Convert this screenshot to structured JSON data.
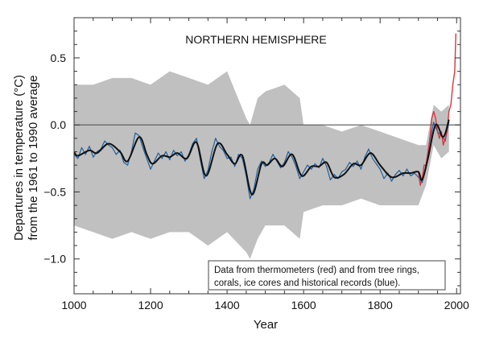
{
  "chart_data": {
    "type": "line",
    "title": "NORTHERN HEMISPHERE",
    "xlabel": "Year",
    "ylabel": [
      "Departures in temperature (°C)",
      "from the 1961 to 1990 average"
    ],
    "xlim": [
      1000,
      2010
    ],
    "ylim": [
      -1.26,
      0.8
    ],
    "x_ticks": [
      1000,
      1200,
      1400,
      1600,
      1800,
      2000
    ],
    "x_tick_labels": [
      "1000",
      "1200",
      "1400",
      "1600",
      "1800",
      "2000"
    ],
    "y_ticks": [
      0.5,
      0.0,
      -0.5,
      -1.0
    ],
    "y_tick_labels": [
      "0.5",
      "0.0",
      "−0.5",
      "−1.0"
    ],
    "grid": false,
    "reference_line": 0.0,
    "legend_text": [
      "Data from thermometers (red) and from tree rings,",
      "corals, ice cores and historical records (blue)."
    ],
    "legend_position": "bottom-right",
    "colors": {
      "uncertainty": "#c0c0c0",
      "proxy": "#1f5fa0",
      "instrumental": "#d9363e",
      "smoothed": "#111111",
      "zero_line": "#555555"
    },
    "uncertainty_band": {
      "x": [
        1000,
        1050,
        1100,
        1150,
        1200,
        1250,
        1300,
        1350,
        1400,
        1450,
        1460,
        1480,
        1500,
        1550,
        1590,
        1600,
        1650,
        1700,
        1750,
        1800,
        1850,
        1900,
        1920,
        1940,
        1960,
        1980
      ],
      "upper": [
        0.3,
        0.3,
        0.35,
        0.35,
        0.3,
        0.4,
        0.35,
        0.3,
        0.4,
        0.05,
        0.0,
        0.2,
        0.25,
        0.3,
        0.2,
        0.0,
        0.0,
        -0.05,
        0.0,
        -0.05,
        -0.1,
        -0.15,
        -0.15,
        0.15,
        0.1,
        0.15
      ],
      "lower": [
        -0.75,
        -0.8,
        -0.85,
        -0.8,
        -0.85,
        -0.8,
        -0.8,
        -0.9,
        -0.8,
        -0.95,
        -1.0,
        -0.85,
        -0.75,
        -0.75,
        -0.85,
        -0.65,
        -0.6,
        -0.6,
        -0.55,
        -0.6,
        -0.6,
        -0.6,
        -0.45,
        -0.15,
        -0.25,
        -0.2
      ]
    },
    "series": [
      {
        "key": "proxy",
        "x_start": 1000,
        "x_step": 10,
        "values": [
          -0.22,
          -0.25,
          -0.17,
          -0.22,
          -0.16,
          -0.24,
          -0.2,
          -0.18,
          -0.12,
          -0.15,
          -0.17,
          -0.22,
          -0.19,
          -0.28,
          -0.3,
          -0.2,
          -0.06,
          -0.08,
          -0.17,
          -0.25,
          -0.33,
          -0.27,
          -0.21,
          -0.25,
          -0.2,
          -0.26,
          -0.19,
          -0.23,
          -0.2,
          -0.27,
          -0.22,
          -0.14,
          -0.1,
          -0.26,
          -0.4,
          -0.34,
          -0.2,
          -0.1,
          -0.16,
          -0.19,
          -0.25,
          -0.24,
          -0.31,
          -0.22,
          -0.25,
          -0.38,
          -0.55,
          -0.48,
          -0.33,
          -0.27,
          -0.31,
          -0.28,
          -0.22,
          -0.27,
          -0.32,
          -0.28,
          -0.2,
          -0.24,
          -0.31,
          -0.4,
          -0.35,
          -0.3,
          -0.33,
          -0.29,
          -0.32,
          -0.25,
          -0.31,
          -0.41,
          -0.37,
          -0.4,
          -0.35,
          -0.33,
          -0.28,
          -0.31,
          -0.27,
          -0.33,
          -0.24,
          -0.18,
          -0.25,
          -0.29,
          -0.33,
          -0.4,
          -0.36,
          -0.42,
          -0.37,
          -0.34,
          -0.38,
          -0.33,
          -0.38,
          -0.36,
          -0.39,
          -0.43,
          -0.3,
          -0.12,
          0.02,
          -0.05,
          -0.08,
          -0.12,
          0.02
        ]
      },
      {
        "key": "instrumental",
        "x": [
          1900,
          1905,
          1910,
          1915,
          1920,
          1925,
          1930,
          1935,
          1940,
          1945,
          1950,
          1955,
          1960,
          1965,
          1970,
          1975,
          1980,
          1985,
          1990,
          1995,
          1998
        ],
        "values": [
          -0.35,
          -0.45,
          -0.4,
          -0.3,
          -0.3,
          -0.2,
          -0.1,
          0.05,
          0.1,
          0.05,
          -0.05,
          -0.1,
          -0.05,
          -0.15,
          -0.1,
          -0.05,
          0.1,
          0.15,
          0.3,
          0.4,
          0.68
        ]
      },
      {
        "key": "smoothed",
        "x": [
          1000,
          1010,
          1040,
          1060,
          1090,
          1120,
          1140,
          1170,
          1190,
          1205,
          1230,
          1250,
          1270,
          1295,
          1320,
          1345,
          1375,
          1400,
          1420,
          1440,
          1465,
          1490,
          1505,
          1525,
          1545,
          1570,
          1595,
          1620,
          1640,
          1660,
          1680,
          1705,
          1730,
          1750,
          1775,
          1800,
          1830,
          1860,
          1880,
          1900,
          1910,
          1925,
          1945,
          1965,
          1980
        ],
        "values": [
          -0.2,
          -0.23,
          -0.19,
          -0.21,
          -0.14,
          -0.2,
          -0.27,
          -0.09,
          -0.22,
          -0.29,
          -0.23,
          -0.24,
          -0.21,
          -0.25,
          -0.13,
          -0.38,
          -0.14,
          -0.22,
          -0.29,
          -0.23,
          -0.52,
          -0.29,
          -0.3,
          -0.25,
          -0.31,
          -0.22,
          -0.38,
          -0.31,
          -0.31,
          -0.28,
          -0.39,
          -0.37,
          -0.29,
          -0.3,
          -0.21,
          -0.3,
          -0.39,
          -0.36,
          -0.36,
          -0.35,
          -0.41,
          -0.25,
          0.0,
          -0.09,
          0.04
        ]
      }
    ]
  }
}
